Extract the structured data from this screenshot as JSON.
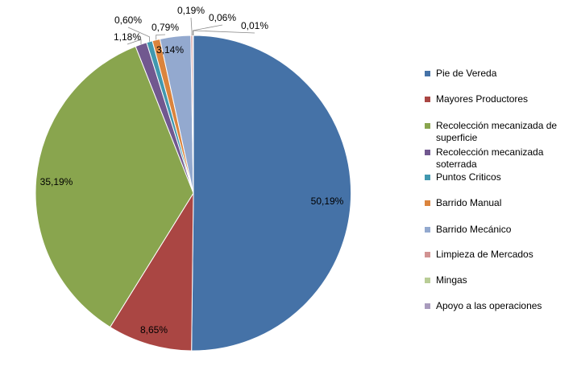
{
  "chart_data": {
    "type": "pie",
    "title": "",
    "legend_position": "right",
    "slices": [
      {
        "label": "Pie de Vereda",
        "value": 50.19,
        "display": "50,19%",
        "color": "#4572A7"
      },
      {
        "label": "Mayores Productores",
        "value": 8.65,
        "display": "8,65%",
        "color": "#AA4643"
      },
      {
        "label": "Recolección mecanizada de superficie",
        "value": 35.19,
        "display": "35,19%",
        "color": "#89A54E"
      },
      {
        "label": "Recolección mecanizada soterrada",
        "value": 1.18,
        "display": "1,18%",
        "color": "#71588F"
      },
      {
        "label": "Puntos Criticos",
        "value": 0.6,
        "display": "0,60%",
        "color": "#4198AF"
      },
      {
        "label": "Barrido Manual",
        "value": 0.79,
        "display": "0,79%",
        "color": "#DB843D"
      },
      {
        "label": "Barrido Mecánico",
        "value": 3.14,
        "display": "3,14%",
        "color": "#93A9CF"
      },
      {
        "label": "Limpieza de Mercados",
        "value": 0.19,
        "display": "0,19%",
        "color": "#D19392"
      },
      {
        "label": "Mingas",
        "value": 0.06,
        "display": "0,06%",
        "color": "#B9CD96"
      },
      {
        "label": "Apoyo a las operaciones",
        "value": 0.01,
        "display": "0,01%",
        "color": "#A99BBD"
      }
    ]
  }
}
